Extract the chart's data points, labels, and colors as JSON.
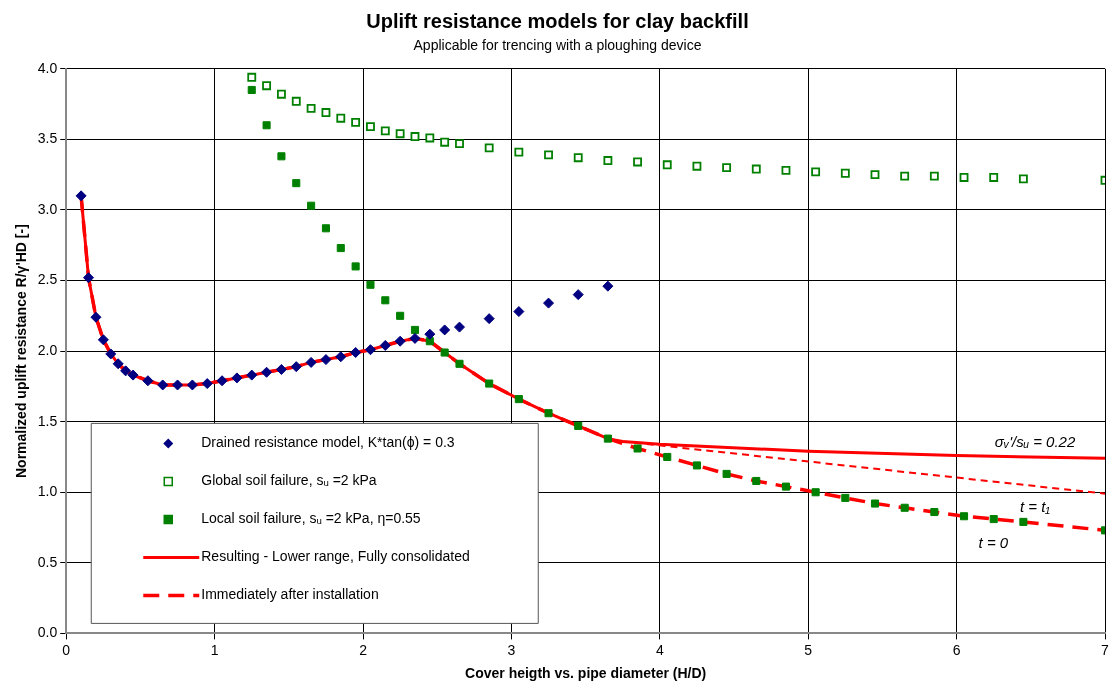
{
  "chart_data": {
    "type": "scatter",
    "title": "Uplift resistance models for clay backfill",
    "subtitle": "Applicable for trencing with a ploughing device",
    "xlabel": "Cover heigth vs. pipe diameter (H/D)",
    "ylabel": "Normalized uplift resistance R/γ'HD [-]",
    "xlim": [
      0,
      7
    ],
    "xticks": [
      0,
      1,
      2,
      3,
      4,
      5,
      6,
      7
    ],
    "ylim": [
      0,
      4
    ],
    "yticks": [
      {
        "value": 0,
        "label": "0.0"
      },
      {
        "value": 0.5,
        "label": "0.5"
      },
      {
        "value": 1,
        "label": "1.0"
      },
      {
        "value": 1.5,
        "label": "1.5"
      },
      {
        "value": 2,
        "label": "2.0"
      },
      {
        "value": 2.5,
        "label": "2.5"
      },
      {
        "value": 3,
        "label": "3.0"
      },
      {
        "value": 3.5,
        "label": "3.5"
      },
      {
        "value": 4,
        "label": "4.0"
      }
    ],
    "grid": true,
    "legend": "bottom left",
    "series": [
      {
        "name": "Drained resistance model, K*tan(ϕ) = 0.3",
        "type": "scatter",
        "marker": "diamond",
        "color": "#000080",
        "x": [
          0.1,
          0.15,
          0.2,
          0.25,
          0.3,
          0.35,
          0.4,
          0.45,
          0.55,
          0.65,
          0.75,
          0.85,
          0.95,
          1.05,
          1.15,
          1.25,
          1.35,
          1.45,
          1.55,
          1.65,
          1.75,
          1.85,
          1.95,
          2.05,
          2.15,
          2.25,
          2.35,
          2.45,
          2.55,
          2.65,
          2.85,
          3.05,
          3.25,
          3.45,
          3.65
        ],
        "values": [
          3.1,
          2.52,
          2.24,
          2.08,
          1.98,
          1.91,
          1.86,
          1.83,
          1.79,
          1.76,
          1.76,
          1.76,
          1.77,
          1.79,
          1.81,
          1.83,
          1.85,
          1.87,
          1.89,
          1.92,
          1.94,
          1.96,
          1.99,
          2.01,
          2.04,
          2.07,
          2.09,
          2.12,
          2.15,
          2.17,
          2.23,
          2.28,
          2.34,
          2.4,
          2.46
        ]
      },
      {
        "name": "Global soil failure, sᵤ =2 kPa",
        "type": "scatter",
        "marker": "square",
        "color": "#008000",
        "x": [
          1.25,
          1.35,
          1.45,
          1.55,
          1.65,
          1.75,
          1.85,
          1.95,
          2.05,
          2.15,
          2.25,
          2.35,
          2.45,
          2.55,
          2.65,
          2.85,
          3.05,
          3.25,
          3.45,
          3.65,
          3.85,
          4.05,
          4.25,
          4.45,
          4.65,
          4.85,
          5.05,
          5.25,
          5.45,
          5.65,
          5.85,
          6.05,
          6.25,
          6.45,
          7
        ],
        "values": [
          3.94,
          3.88,
          3.82,
          3.77,
          3.72,
          3.69,
          3.65,
          3.62,
          3.59,
          3.56,
          3.54,
          3.52,
          3.51,
          3.48,
          3.47,
          3.44,
          3.41,
          3.39,
          3.37,
          3.35,
          3.34,
          3.32,
          3.31,
          3.3,
          3.29,
          3.28,
          3.27,
          3.26,
          3.25,
          3.24,
          3.24,
          3.23,
          3.23,
          3.22,
          3.21
        ]
      },
      {
        "name": "Local soil failure, sᵤ =2 kPa, η=0.55",
        "type": "scatter",
        "marker": "square",
        "color": "#008000",
        "x": [
          1.25,
          1.35,
          1.45,
          1.55,
          1.65,
          1.75,
          1.85,
          1.95,
          2.05,
          2.15,
          2.25,
          2.35,
          2.45,
          2.55,
          2.65,
          2.85,
          3.05,
          3.25,
          3.45,
          3.65,
          3.85,
          4.05,
          4.25,
          4.45,
          4.65,
          4.85,
          5.05,
          5.25,
          5.45,
          5.65,
          5.85,
          6.05,
          6.25,
          6.45,
          7
        ],
        "values": [
          3.85,
          3.6,
          3.38,
          3.19,
          3.03,
          2.87,
          2.73,
          2.6,
          2.47,
          2.36,
          2.25,
          2.15,
          2.07,
          1.99,
          1.91,
          1.77,
          1.66,
          1.56,
          1.47,
          1.38,
          1.31,
          1.25,
          1.19,
          1.13,
          1.08,
          1.04,
          1.0,
          0.96,
          0.92,
          0.89,
          0.86,
          0.83,
          0.81,
          0.79,
          0.73
        ]
      },
      {
        "name": "Resulting - Lower range, Fully consolidated",
        "type": "line",
        "marker": "none",
        "line_style": "solid",
        "color": "#ff0000",
        "x": [
          0.1,
          0.15,
          0.2,
          0.25,
          0.3,
          0.35,
          0.4,
          0.45,
          0.55,
          0.65,
          0.75,
          0.85,
          0.95,
          1.05,
          1.15,
          1.25,
          1.35,
          1.45,
          1.55,
          1.65,
          1.75,
          1.85,
          1.95,
          2.05,
          2.15,
          2.25,
          2.35,
          2.45,
          2.55,
          2.65,
          2.85,
          3.05,
          3.25,
          3.45,
          3.65,
          3.75,
          4,
          5,
          6,
          7
        ],
        "values": [
          3.1,
          2.52,
          2.24,
          2.08,
          1.98,
          1.91,
          1.86,
          1.83,
          1.79,
          1.76,
          1.76,
          1.76,
          1.77,
          1.79,
          1.81,
          1.83,
          1.85,
          1.87,
          1.89,
          1.92,
          1.94,
          1.96,
          1.99,
          2.01,
          2.04,
          2.07,
          2.09,
          2.07,
          1.99,
          1.91,
          1.77,
          1.66,
          1.56,
          1.47,
          1.38,
          1.36,
          1.34,
          1.29,
          1.26,
          1.24
        ]
      },
      {
        "name": "Immediately after installation",
        "type": "line",
        "marker": "none",
        "line_style": "dashed",
        "color": "#ff0000",
        "x": [
          0.1,
          0.15,
          0.2,
          0.25,
          0.3,
          0.35,
          0.4,
          0.45,
          0.55,
          0.65,
          0.75,
          0.85,
          0.95,
          1.05,
          1.15,
          1.25,
          1.35,
          1.45,
          1.55,
          1.65,
          1.75,
          1.85,
          1.95,
          2.05,
          2.15,
          2.25,
          2.35,
          2.45,
          2.55,
          2.65,
          2.85,
          3.05,
          3.25,
          3.45,
          3.65,
          3.85,
          4.05,
          4.25,
          4.45,
          4.65,
          4.85,
          5.05,
          5.25,
          5.45,
          5.65,
          5.85,
          6.05,
          6.25,
          6.45,
          7
        ],
        "values": [
          3.1,
          2.52,
          2.24,
          2.08,
          1.98,
          1.91,
          1.86,
          1.83,
          1.79,
          1.76,
          1.76,
          1.76,
          1.77,
          1.79,
          1.81,
          1.83,
          1.85,
          1.87,
          1.89,
          1.92,
          1.94,
          1.96,
          1.99,
          2.01,
          2.04,
          2.07,
          2.09,
          2.07,
          1.99,
          1.91,
          1.77,
          1.66,
          1.56,
          1.47,
          1.38,
          1.31,
          1.25,
          1.19,
          1.13,
          1.08,
          1.04,
          1.0,
          0.96,
          0.92,
          0.89,
          0.86,
          0.83,
          0.81,
          0.79,
          0.73
        ]
      },
      {
        "type": "line",
        "marker": "none",
        "line_style": "dotted",
        "color": "#ff0000",
        "x": [
          3.75,
          7
        ],
        "values": [
          1.36,
          0.99
        ]
      }
    ],
    "annotations": [
      "σᵥ'/sᵤ = 0.22",
      "t = t₁",
      "t = 0"
    ]
  }
}
